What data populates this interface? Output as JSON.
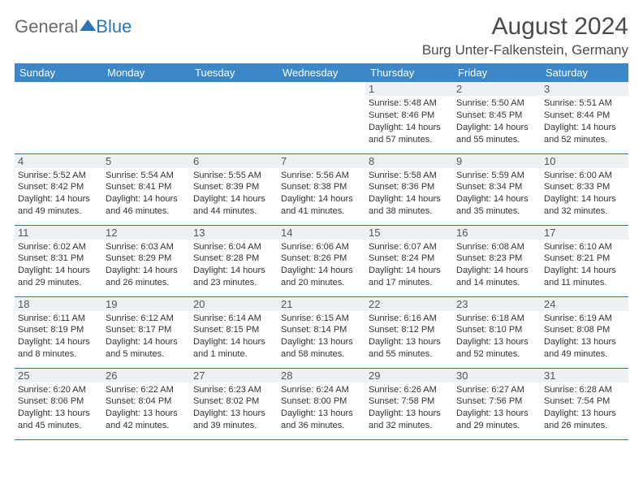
{
  "brand": {
    "general": "General",
    "blue": "Blue"
  },
  "header": {
    "month_title": "August 2024",
    "location": "Burg Unter-Falkenstein, Germany"
  },
  "calendar": {
    "weekday_labels": [
      "Sunday",
      "Monday",
      "Tuesday",
      "Wednesday",
      "Thursday",
      "Friday",
      "Saturday"
    ],
    "colors": {
      "header_bg": "#3b87c8",
      "header_text": "#ffffff",
      "row_border": "#2c75b6",
      "daynum_bg": "#eef1f4",
      "text": "#333333"
    },
    "first_weekday_index": 4,
    "days": [
      {
        "n": 1,
        "sunrise": "5:48 AM",
        "sunset": "8:46 PM",
        "daylight": "14 hours and 57 minutes."
      },
      {
        "n": 2,
        "sunrise": "5:50 AM",
        "sunset": "8:45 PM",
        "daylight": "14 hours and 55 minutes."
      },
      {
        "n": 3,
        "sunrise": "5:51 AM",
        "sunset": "8:44 PM",
        "daylight": "14 hours and 52 minutes."
      },
      {
        "n": 4,
        "sunrise": "5:52 AM",
        "sunset": "8:42 PM",
        "daylight": "14 hours and 49 minutes."
      },
      {
        "n": 5,
        "sunrise": "5:54 AM",
        "sunset": "8:41 PM",
        "daylight": "14 hours and 46 minutes."
      },
      {
        "n": 6,
        "sunrise": "5:55 AM",
        "sunset": "8:39 PM",
        "daylight": "14 hours and 44 minutes."
      },
      {
        "n": 7,
        "sunrise": "5:56 AM",
        "sunset": "8:38 PM",
        "daylight": "14 hours and 41 minutes."
      },
      {
        "n": 8,
        "sunrise": "5:58 AM",
        "sunset": "8:36 PM",
        "daylight": "14 hours and 38 minutes."
      },
      {
        "n": 9,
        "sunrise": "5:59 AM",
        "sunset": "8:34 PM",
        "daylight": "14 hours and 35 minutes."
      },
      {
        "n": 10,
        "sunrise": "6:00 AM",
        "sunset": "8:33 PM",
        "daylight": "14 hours and 32 minutes."
      },
      {
        "n": 11,
        "sunrise": "6:02 AM",
        "sunset": "8:31 PM",
        "daylight": "14 hours and 29 minutes."
      },
      {
        "n": 12,
        "sunrise": "6:03 AM",
        "sunset": "8:29 PM",
        "daylight": "14 hours and 26 minutes."
      },
      {
        "n": 13,
        "sunrise": "6:04 AM",
        "sunset": "8:28 PM",
        "daylight": "14 hours and 23 minutes."
      },
      {
        "n": 14,
        "sunrise": "6:06 AM",
        "sunset": "8:26 PM",
        "daylight": "14 hours and 20 minutes."
      },
      {
        "n": 15,
        "sunrise": "6:07 AM",
        "sunset": "8:24 PM",
        "daylight": "14 hours and 17 minutes."
      },
      {
        "n": 16,
        "sunrise": "6:08 AM",
        "sunset": "8:23 PM",
        "daylight": "14 hours and 14 minutes."
      },
      {
        "n": 17,
        "sunrise": "6:10 AM",
        "sunset": "8:21 PM",
        "daylight": "14 hours and 11 minutes."
      },
      {
        "n": 18,
        "sunrise": "6:11 AM",
        "sunset": "8:19 PM",
        "daylight": "14 hours and 8 minutes."
      },
      {
        "n": 19,
        "sunrise": "6:12 AM",
        "sunset": "8:17 PM",
        "daylight": "14 hours and 5 minutes."
      },
      {
        "n": 20,
        "sunrise": "6:14 AM",
        "sunset": "8:15 PM",
        "daylight": "14 hours and 1 minute."
      },
      {
        "n": 21,
        "sunrise": "6:15 AM",
        "sunset": "8:14 PM",
        "daylight": "13 hours and 58 minutes."
      },
      {
        "n": 22,
        "sunrise": "6:16 AM",
        "sunset": "8:12 PM",
        "daylight": "13 hours and 55 minutes."
      },
      {
        "n": 23,
        "sunrise": "6:18 AM",
        "sunset": "8:10 PM",
        "daylight": "13 hours and 52 minutes."
      },
      {
        "n": 24,
        "sunrise": "6:19 AM",
        "sunset": "8:08 PM",
        "daylight": "13 hours and 49 minutes."
      },
      {
        "n": 25,
        "sunrise": "6:20 AM",
        "sunset": "8:06 PM",
        "daylight": "13 hours and 45 minutes."
      },
      {
        "n": 26,
        "sunrise": "6:22 AM",
        "sunset": "8:04 PM",
        "daylight": "13 hours and 42 minutes."
      },
      {
        "n": 27,
        "sunrise": "6:23 AM",
        "sunset": "8:02 PM",
        "daylight": "13 hours and 39 minutes."
      },
      {
        "n": 28,
        "sunrise": "6:24 AM",
        "sunset": "8:00 PM",
        "daylight": "13 hours and 36 minutes."
      },
      {
        "n": 29,
        "sunrise": "6:26 AM",
        "sunset": "7:58 PM",
        "daylight": "13 hours and 32 minutes."
      },
      {
        "n": 30,
        "sunrise": "6:27 AM",
        "sunset": "7:56 PM",
        "daylight": "13 hours and 29 minutes."
      },
      {
        "n": 31,
        "sunrise": "6:28 AM",
        "sunset": "7:54 PM",
        "daylight": "13 hours and 26 minutes."
      }
    ],
    "labels": {
      "sunrise": "Sunrise:",
      "sunset": "Sunset:",
      "daylight": "Daylight:"
    }
  }
}
